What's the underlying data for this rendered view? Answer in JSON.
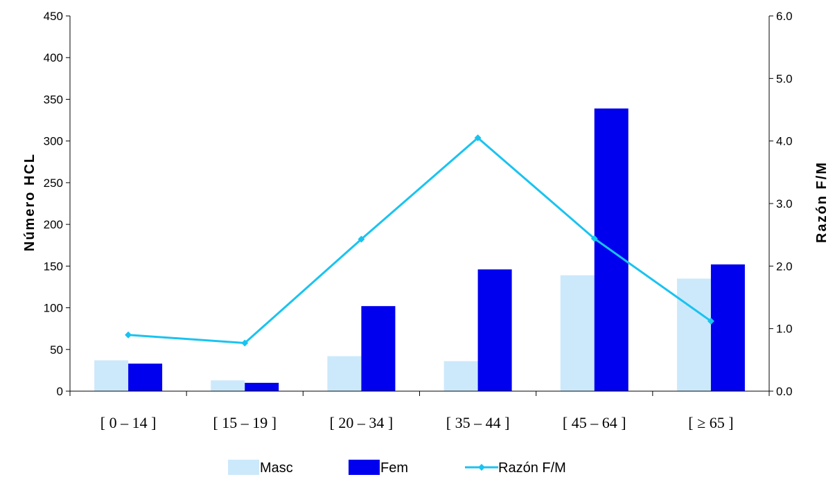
{
  "chart_data": {
    "type": "bar",
    "categories": [
      "[ 0 – 14 ]",
      "[ 15  – 19 ]",
      "[ 20  – 34 ]",
      "[ 35  – 44 ]",
      "[ 45  – 64 ]",
      "[ ≥ 65 ]"
    ],
    "series": [
      {
        "name": "Masc",
        "type": "bar",
        "axis": "left",
        "color": "#cce9fb",
        "values": [
          37,
          13,
          42,
          36,
          139,
          135
        ]
      },
      {
        "name": "Fem",
        "type": "bar",
        "axis": "left",
        "color": "#0000ee",
        "values": [
          33,
          10,
          102,
          146,
          339,
          152
        ]
      },
      {
        "name": "Razón F/M",
        "type": "line",
        "axis": "right",
        "color": "#19c3f0",
        "marker": "diamond",
        "values": [
          0.9,
          0.77,
          2.43,
          4.05,
          2.44,
          1.12
        ]
      }
    ],
    "ylabel": "Número HCL",
    "ylabel_right": "Razón F/M",
    "ylim": [
      0,
      450
    ],
    "ylim_right": [
      0,
      6.0
    ],
    "yticks": [
      "0",
      "50",
      "100",
      "150",
      "200",
      "250",
      "300",
      "350",
      "400",
      "450"
    ],
    "yticks_right": [
      "0.0",
      "1.0",
      "2.0",
      "3.0",
      "4.0",
      "5.0",
      "6.0"
    ],
    "grid": false,
    "legend_position": "bottom"
  }
}
